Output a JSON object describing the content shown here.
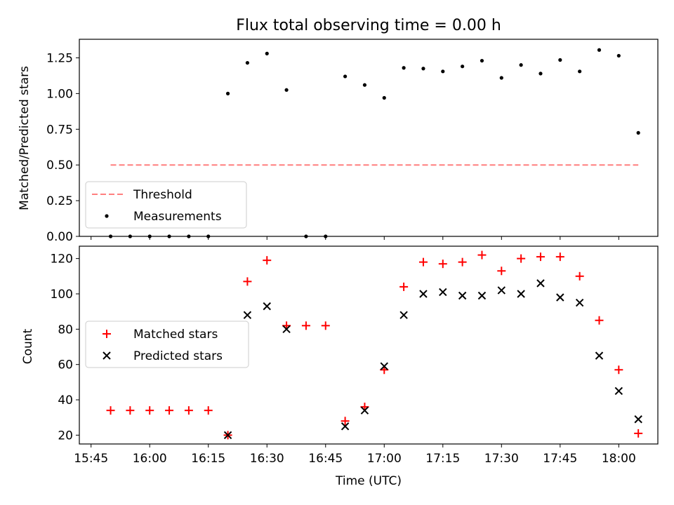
{
  "figure_title": "Flux total observing time = 0.00 h",
  "colors": {
    "threshold": "#ff7f7f",
    "measurement": "#000000",
    "matched": "#ff0000",
    "predicted": "#000000"
  },
  "chart_data": [
    {
      "type": "scatter",
      "title": "Flux total observing time = 0.00 h",
      "xlabel": "",
      "ylabel": "Matched/Predicted stars",
      "ylim": [
        0,
        1.38
      ],
      "yticks": [
        "0.00",
        "0.25",
        "0.50",
        "0.75",
        "1.00",
        "1.25"
      ],
      "xlim_minutes": [
        -3,
        145
      ],
      "grid": false,
      "legend": "lower-left",
      "threshold": {
        "name": "Threshold",
        "value": 0.5,
        "x": [
          "15:50",
          "18:05"
        ]
      },
      "series": [
        {
          "name": "Measurements",
          "x": [
            "15:50",
            "15:55",
            "16:00",
            "16:05",
            "16:10",
            "16:15",
            "16:20",
            "16:25",
            "16:30",
            "16:35",
            "16:40",
            "16:45",
            "16:50",
            "16:55",
            "17:00",
            "17:05",
            "17:10",
            "17:15",
            "17:20",
            "17:25",
            "17:30",
            "17:35",
            "17:40",
            "17:45",
            "17:50",
            "17:55",
            "18:00",
            "18:05"
          ],
          "y": [
            0,
            0,
            0,
            0,
            0,
            0,
            1.0,
            1.215,
            1.28,
            1.025,
            0,
            0,
            1.12,
            1.06,
            0.97,
            1.18,
            1.175,
            1.155,
            1.19,
            1.23,
            1.11,
            1.2,
            1.14,
            1.235,
            1.155,
            1.305,
            1.265,
            0.725
          ]
        }
      ]
    },
    {
      "type": "scatter",
      "xlabel": "Time (UTC)",
      "ylabel": "Count",
      "ylim": [
        15,
        127
      ],
      "yticks": [
        "20",
        "40",
        "60",
        "80",
        "100",
        "120"
      ],
      "xticks": [
        "15:45",
        "16:00",
        "16:15",
        "16:30",
        "16:45",
        "17:00",
        "17:15",
        "17:30",
        "17:45",
        "18:00"
      ],
      "xlim_minutes": [
        -3,
        145
      ],
      "grid": false,
      "legend": "center-left",
      "series": [
        {
          "name": "Matched stars",
          "x": [
            "15:50",
            "15:55",
            "16:00",
            "16:05",
            "16:10",
            "16:15",
            "16:20",
            "16:25",
            "16:30",
            "16:35",
            "16:40",
            "16:45",
            "16:50",
            "16:55",
            "17:00",
            "17:05",
            "17:10",
            "17:15",
            "17:20",
            "17:25",
            "17:30",
            "17:35",
            "17:40",
            "17:45",
            "17:50",
            "17:55",
            "18:00",
            "18:05"
          ],
          "y": [
            34,
            34,
            34,
            34,
            34,
            34,
            20,
            107,
            119,
            82,
            82,
            82,
            28,
            36,
            57,
            104,
            118,
            117,
            118,
            122,
            113,
            120,
            121,
            121,
            110,
            85,
            57,
            21
          ]
        },
        {
          "name": "Predicted stars",
          "x": [
            "16:20",
            "16:25",
            "16:30",
            "16:35",
            "16:50",
            "16:55",
            "17:00",
            "17:05",
            "17:10",
            "17:15",
            "17:20",
            "17:25",
            "17:30",
            "17:35",
            "17:40",
            "17:45",
            "17:50",
            "17:55",
            "18:00",
            "18:05"
          ],
          "y": [
            20,
            88,
            93,
            80,
            25,
            34,
            59,
            88,
            100,
            101,
            99,
            99,
            102,
            100,
            106,
            98,
            95,
            65,
            45,
            29
          ]
        }
      ]
    }
  ]
}
